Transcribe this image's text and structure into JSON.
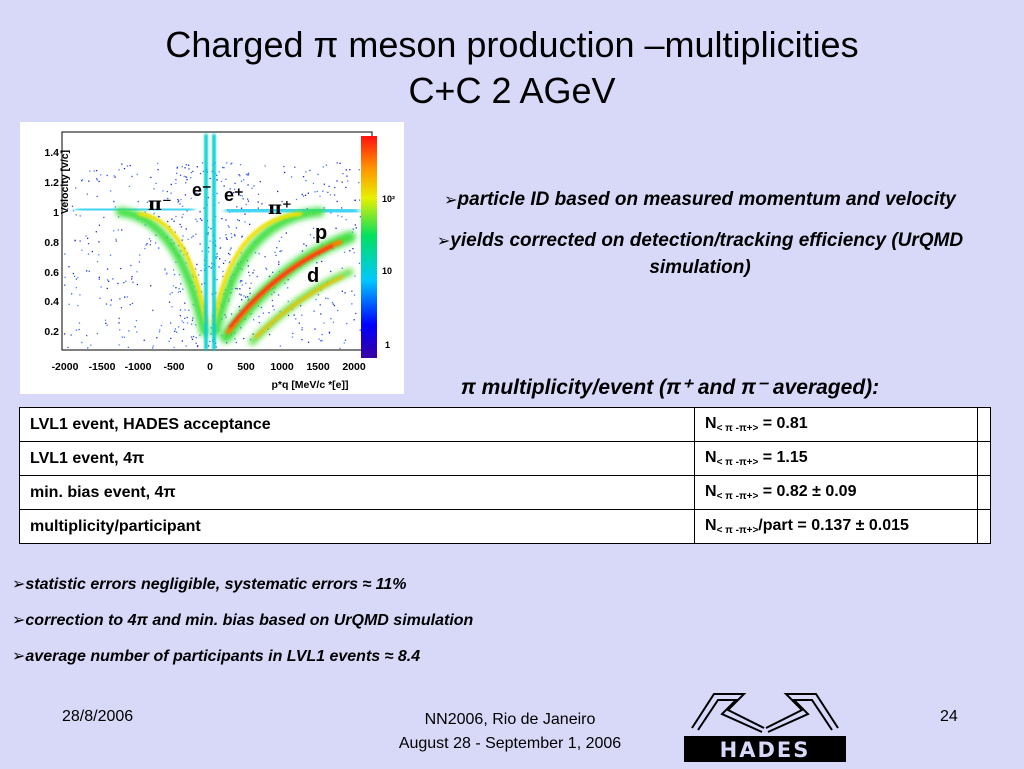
{
  "title": {
    "line1": "Charged π meson production –multiplicities",
    "line2": "C+C 2 AGeV"
  },
  "plot": {
    "y_axis_label": "Velocity [v/c]",
    "x_axis_label": "p*q [MeV/c *[e]]",
    "y_ticks": [
      "0.2",
      "0.4",
      "0.6",
      "0.8",
      "1",
      "1.2",
      "1.4"
    ],
    "x_ticks": [
      "-2000",
      "-1500",
      "-1000",
      "-500",
      "0",
      "500",
      "1000",
      "1500",
      "2000"
    ],
    "colorbar_ticks": [
      "10²",
      "10",
      "1"
    ],
    "particle_labels": [
      "π⁻",
      "e⁻",
      "e⁺",
      "π⁺",
      "p",
      "d"
    ]
  },
  "bullets_right": [
    "particle ID based on measured momentum and velocity",
    "yields corrected on detection/tracking efficiency (UrQMD simulation)"
  ],
  "multiplicity_heading": "π multiplicity/event (π⁺ and π⁻ averaged):",
  "table": {
    "rows": [
      {
        "label": "LVL1 event, HADES acceptance",
        "n": "N",
        "sub": "< π -π+>",
        "value": " =   0.81"
      },
      {
        "label": "LVL1 event, 4π",
        "n": "N",
        "sub": "< π -π+>",
        "value": " =   1.15"
      },
      {
        "label": "min. bias event, 4π",
        "n": "N",
        "sub": "< π -π+>",
        "value": " =   0.82 ± 0.09"
      },
      {
        "label": "multiplicity/participant",
        "n": "N",
        "sub": "< π -π+>",
        "value": "/part  =  0.137 ± 0.015"
      }
    ]
  },
  "bullets_bottom": [
    "statistic errors negligible, systematic errors ≈ 11%",
    "correction to 4π and min. bias based on UrQMD simulation",
    "average number of participants in LVL1 events ≈ 8.4"
  ],
  "footer": {
    "date": "28/8/2006",
    "conf_line1": "NN2006, Rio de Janeiro",
    "conf_line2": "August 28 - September 1, 2006",
    "page": "24",
    "logo_text": "HADES"
  }
}
